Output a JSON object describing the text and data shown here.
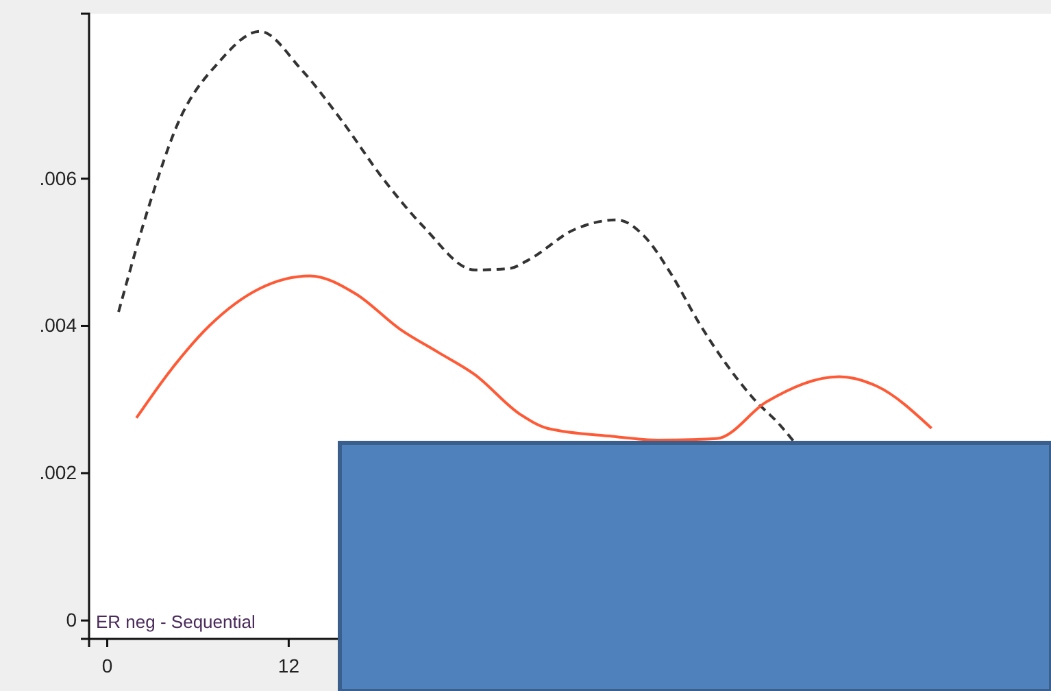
{
  "chart_data": {
    "type": "line",
    "xlim": [
      -1.2,
      62.4
    ],
    "ylim": [
      -0.00025,
      0.00824
    ],
    "xticks": [
      0,
      12
    ],
    "yticks": [
      0,
      {
        "value": 0.002,
        "label": ".002"
      },
      {
        "value": 0.004,
        "label": ".004"
      },
      {
        "value": 0.006,
        "label": ".006"
      }
    ],
    "grid": false,
    "annotations": [
      "ER neg - Sequential"
    ],
    "series": [
      {
        "color": "#333333",
        "line_style": "dashed",
        "x": [
          0.75,
          2.84,
          4.65,
          7.37,
          10.1,
          12.8,
          15.5,
          18.2,
          20.9,
          24.3,
          26.6,
          27.8,
          30.9,
          33.7,
          35.5,
          37.3,
          39.1,
          40.9,
          42.7,
          44.5,
          45.4
        ],
        "values": [
          0.00419,
          0.00568,
          0.00674,
          0.00758,
          0.008,
          0.00749,
          0.00679,
          0.00601,
          0.00535,
          0.00476,
          0.00478,
          0.00489,
          0.00531,
          0.00544,
          0.00522,
          0.0047,
          0.00405,
          0.00349,
          0.00302,
          0.00265,
          0.00243
        ]
      },
      {
        "color": "#ff5a36",
        "line_style": "solid",
        "x": [
          1.93,
          4.2,
          6.74,
          10.1,
          13.4,
          16.4,
          19.4,
          21.9,
          24.3,
          27.3,
          29.1,
          33.4,
          36.4,
          40.3,
          43.6,
          48.4,
          50.9,
          54.5
        ],
        "values": [
          0.00275,
          0.0034,
          0.004,
          0.00451,
          0.00468,
          0.00444,
          0.00395,
          0.00364,
          0.00334,
          0.0028,
          0.00261,
          0.0025,
          0.00245,
          0.00247,
          0.00297,
          0.00331,
          0.00318,
          0.00261
        ]
      }
    ]
  }
}
